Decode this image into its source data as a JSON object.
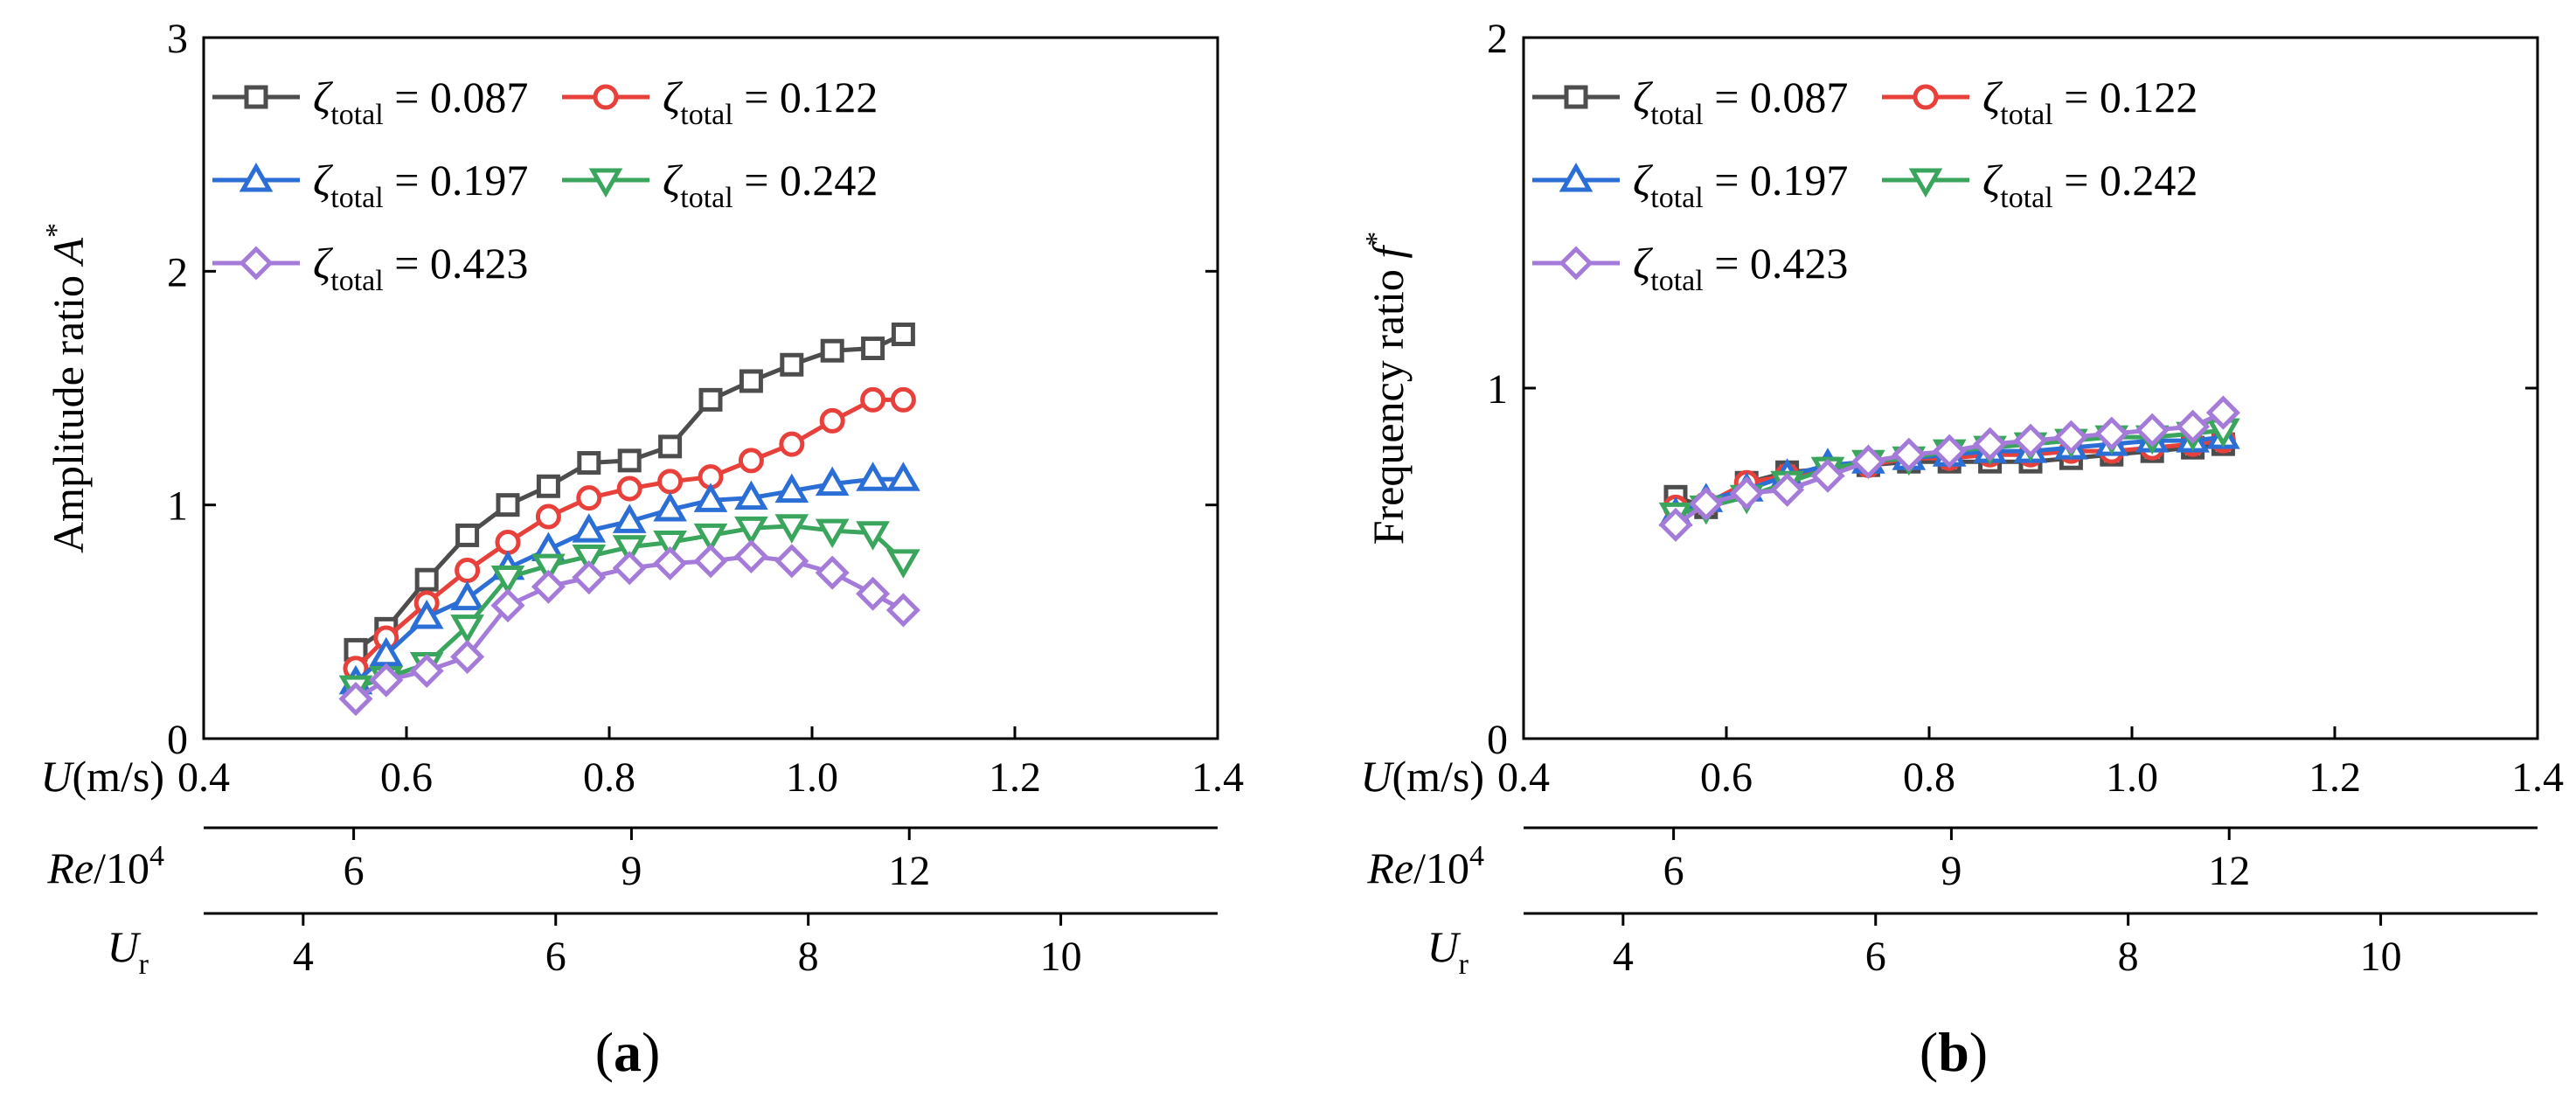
{
  "colors": {
    "zeta_0087": "#4d4d4d",
    "zeta_0122": "#e8403a",
    "zeta_0197": "#2b6fd6",
    "zeta_0242": "#3aa55c",
    "zeta_0423": "#a47bd9",
    "axis": "#000000"
  },
  "secondary_axes": {
    "u_label": "U",
    "u_unit": "(m/s)",
    "re_label": "Re",
    "re_unit": "/10",
    "re_exp": "4",
    "ur_label": "U",
    "ur_sub": "r",
    "u_ticks": [
      0.4,
      0.6,
      0.8,
      1.0,
      1.2,
      1.4
    ],
    "u_tick_labels": [
      "0.4",
      "0.6",
      "0.8",
      "1.0",
      "1.2",
      "1.4"
    ],
    "re_ticks": [
      6,
      9,
      12
    ],
    "re_tick_labels": [
      "6",
      "9",
      "12"
    ],
    "ur_ticks": [
      4,
      6,
      8,
      10
    ],
    "ur_tick_labels": [
      "4",
      "6",
      "8",
      "10"
    ],
    "re_per_u": 10.95,
    "ur_per_u": 8.03
  },
  "legend_label": {
    "symbol": "ζ",
    "sub": "total",
    "values": [
      "= 0.087",
      "= 0.122",
      "= 0.197",
      "= 0.242",
      "= 0.423"
    ]
  },
  "chart_data": [
    {
      "type": "line",
      "panel_label": "(a)",
      "panel_letter": "a",
      "ylabel": "Amplitude ratio A*",
      "ylabel_main": "Amplitude ratio ",
      "ylabel_var": "A",
      "ylabel_sup": "*",
      "xlabel": "U(m/s)",
      "xlim": [
        0.4,
        1.4
      ],
      "ylim": [
        0,
        3
      ],
      "yticks": [
        0,
        1,
        2,
        3
      ],
      "ytick_labels": [
        "0",
        "1",
        "2",
        "3"
      ],
      "x": [
        0.55,
        0.58,
        0.62,
        0.66,
        0.7,
        0.74,
        0.78,
        0.82,
        0.86,
        0.9,
        0.94,
        0.98,
        1.02,
        1.06,
        1.09
      ],
      "series": [
        {
          "name": "ζtotal = 0.087",
          "marker": "square",
          "values": [
            0.38,
            0.47,
            0.68,
            0.87,
            1.0,
            1.08,
            1.18,
            1.19,
            1.25,
            1.45,
            1.53,
            1.6,
            1.66,
            1.67,
            1.73
          ]
        },
        {
          "name": "ζtotal = 0.122",
          "marker": "circle",
          "values": [
            0.3,
            0.43,
            0.58,
            0.72,
            0.84,
            0.95,
            1.03,
            1.07,
            1.1,
            1.12,
            1.19,
            1.26,
            1.36,
            1.45,
            1.45
          ]
        },
        {
          "name": "ζtotal = 0.197",
          "marker": "triangle-up",
          "values": [
            0.24,
            0.36,
            0.52,
            0.6,
            0.73,
            0.81,
            0.89,
            0.93,
            0.98,
            1.02,
            1.03,
            1.06,
            1.09,
            1.11,
            1.11
          ]
        },
        {
          "name": "ζtotal = 0.242",
          "marker": "triangle-down",
          "values": [
            0.22,
            0.26,
            0.32,
            0.48,
            0.69,
            0.74,
            0.78,
            0.82,
            0.84,
            0.87,
            0.9,
            0.91,
            0.89,
            0.88,
            0.76
          ]
        },
        {
          "name": "ζtotal = 0.423",
          "marker": "diamond",
          "values": [
            0.17,
            0.25,
            0.29,
            0.35,
            0.57,
            0.65,
            0.69,
            0.73,
            0.75,
            0.76,
            0.78,
            0.76,
            0.71,
            0.62,
            0.55
          ]
        }
      ]
    },
    {
      "type": "line",
      "panel_label": "(b)",
      "panel_letter": "b",
      "ylabel": "Frequency ratio f*",
      "ylabel_main": "Frequency ratio ",
      "ylabel_var": "f",
      "ylabel_sup": "*",
      "xlabel": "U(m/s)",
      "xlim": [
        0.4,
        1.4
      ],
      "ylim": [
        0,
        2
      ],
      "yticks": [
        0,
        1,
        2
      ],
      "ytick_labels": [
        "0",
        "1",
        "2"
      ],
      "x": [
        0.55,
        0.58,
        0.62,
        0.66,
        0.7,
        0.74,
        0.78,
        0.82,
        0.86,
        0.9,
        0.94,
        0.98,
        1.02,
        1.06,
        1.09
      ],
      "series": [
        {
          "name": "ζtotal = 0.087",
          "marker": "square",
          "values": [
            0.69,
            0.66,
            0.73,
            0.76,
            0.77,
            0.78,
            0.79,
            0.79,
            0.79,
            0.79,
            0.8,
            0.81,
            0.82,
            0.83,
            0.84
          ]
        },
        {
          "name": "ζtotal = 0.122",
          "marker": "circle",
          "values": [
            0.66,
            0.67,
            0.73,
            0.75,
            0.77,
            0.78,
            0.8,
            0.8,
            0.81,
            0.81,
            0.82,
            0.82,
            0.83,
            0.84,
            0.85
          ]
        },
        {
          "name": "ζtotal = 0.197",
          "marker": "triangle-up",
          "values": [
            0.64,
            0.68,
            0.71,
            0.75,
            0.78,
            0.79,
            0.8,
            0.81,
            0.82,
            0.82,
            0.83,
            0.84,
            0.85,
            0.85,
            0.86
          ]
        },
        {
          "name": "ζtotal = 0.242",
          "marker": "triangle-down",
          "values": [
            0.64,
            0.66,
            0.69,
            0.73,
            0.77,
            0.79,
            0.8,
            0.82,
            0.83,
            0.84,
            0.85,
            0.86,
            0.86,
            0.87,
            0.88
          ]
        },
        {
          "name": "ζtotal = 0.423",
          "marker": "diamond",
          "values": [
            0.61,
            0.67,
            0.7,
            0.71,
            0.75,
            0.79,
            0.81,
            0.82,
            0.84,
            0.85,
            0.86,
            0.87,
            0.88,
            0.89,
            0.93
          ]
        }
      ]
    }
  ]
}
